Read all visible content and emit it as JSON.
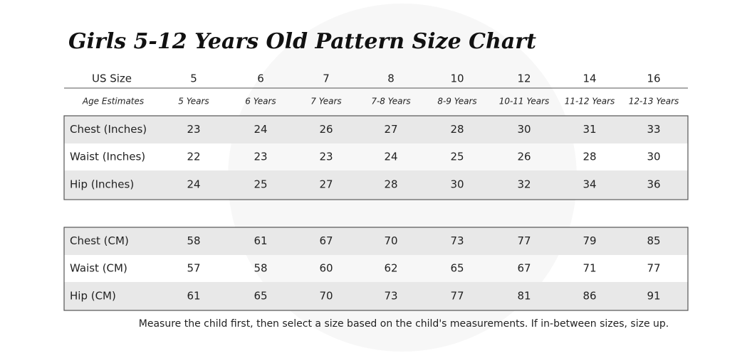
{
  "header": {
    "title": "Girls 5-12 Years Old Pattern Size Chart"
  },
  "table": {
    "header": [
      "US Size",
      5,
      6,
      7,
      8,
      10,
      12,
      14,
      16
    ],
    "ages": [
      "Age Estimates",
      "5 Years",
      "6 Years",
      "7 Years",
      "7-8 Years",
      "8-9 Years",
      "10-11 Years",
      "11-12 Years",
      "12-13 Years"
    ],
    "inches": [
      [
        "Chest (Inches)",
        23,
        24,
        26,
        27,
        28,
        30,
        31,
        33
      ],
      [
        "Waist (Inches)",
        22,
        23,
        23,
        24,
        25,
        26,
        28,
        30
      ],
      [
        "Hip (Inches)",
        24,
        25,
        27,
        28,
        30,
        32,
        34,
        36
      ]
    ],
    "cm": [
      [
        "Chest  (CM)",
        58,
        61,
        67,
        70,
        73,
        77,
        79,
        85
      ],
      [
        "Waist  (CM)",
        57,
        58,
        60,
        62,
        65,
        67,
        71,
        77
      ],
      [
        "Hip (CM)",
        61,
        65,
        70,
        73,
        77,
        81,
        86,
        91
      ]
    ]
  },
  "footnote": "Measure the child first, then select a size based on the child's measurements. If in-between sizes, size up."
}
